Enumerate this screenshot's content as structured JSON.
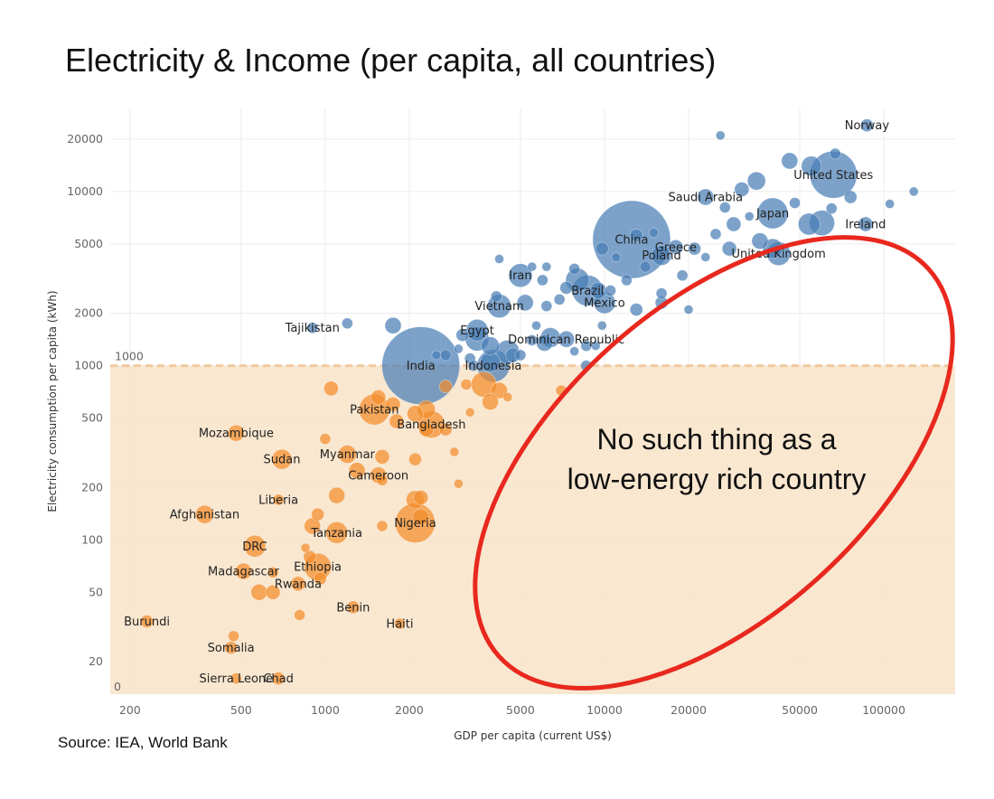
{
  "title": "Electricity & Income (per capita, all countries)",
  "source": "Source: IEA, World Bank",
  "chart_data": {
    "type": "scatter",
    "title": "Electricity & Income (per capita, all countries)",
    "xlabel": "GDP per capita (current US$)",
    "ylabel": "Electricity consumption per capita (kWh)",
    "x_scale": "log",
    "y_scale": "log",
    "xlim": [
      170,
      180000
    ],
    "ylim": [
      13,
      30000
    ],
    "x_ticks": [
      200,
      500,
      1000,
      2000,
      5000,
      10000,
      20000,
      50000,
      100000
    ],
    "x_tick_labels": [
      "200",
      "500",
      "1000",
      "2000",
      "5000",
      "10000",
      "20000",
      "50000",
      "100000"
    ],
    "y_ticks": [
      20,
      50,
      100,
      200,
      500,
      1000,
      2000,
      5000,
      10000,
      20000
    ],
    "y_tick_labels": [
      "20",
      "50",
      "100",
      "200",
      "500",
      "1000",
      "2000",
      "5000",
      "10000",
      "20000"
    ],
    "grid": true,
    "threshold": {
      "value": 1000,
      "label": "1000",
      "zero_label": "0"
    },
    "colors": {
      "above": "#4a7eb5",
      "below": "#f28e2b",
      "shade": "#f8e3c8",
      "threshold_line": "#f2c9a0",
      "annotation_ellipse": "#e8281e"
    },
    "annotation": [
      "No such thing as a",
      "low-energy rich country"
    ],
    "labeled_points": [
      {
        "name": "Norway",
        "x": 87000,
        "y": 24000,
        "size": 7
      },
      {
        "name": "United States",
        "x": 66000,
        "y": 12500,
        "size": 26
      },
      {
        "name": "Saudi Arabia",
        "x": 23000,
        "y": 9300,
        "size": 9
      },
      {
        "name": "Japan",
        "x": 40000,
        "y": 7500,
        "size": 17
      },
      {
        "name": "Ireland",
        "x": 86000,
        "y": 6500,
        "size": 8
      },
      {
        "name": "China",
        "x": 12500,
        "y": 5300,
        "size": 43
      },
      {
        "name": "Greece",
        "x": 18000,
        "y": 4800,
        "size": 8
      },
      {
        "name": "Poland",
        "x": 16000,
        "y": 4300,
        "size": 11
      },
      {
        "name": "United Kingdom",
        "x": 42000,
        "y": 4400,
        "size": 13
      },
      {
        "name": "Iran",
        "x": 5000,
        "y": 3300,
        "size": 13
      },
      {
        "name": "Brazil",
        "x": 8700,
        "y": 2700,
        "size": 17
      },
      {
        "name": "Mexico",
        "x": 10000,
        "y": 2300,
        "size": 12
      },
      {
        "name": "Vietnam",
        "x": 4200,
        "y": 2200,
        "size": 13
      },
      {
        "name": "Tajikistan",
        "x": 900,
        "y": 1650,
        "size": 6
      },
      {
        "name": "Egypt",
        "x": 3500,
        "y": 1600,
        "size": 12
      },
      {
        "name": "Dominican Republic",
        "x": 7300,
        "y": 1420,
        "size": 9
      },
      {
        "name": "India",
        "x": 2200,
        "y": 1000,
        "size": 43
      },
      {
        "name": "Indonesia",
        "x": 4000,
        "y": 1000,
        "size": 18
      },
      {
        "name": "Pakistan",
        "x": 1500,
        "y": 560,
        "size": 17
      },
      {
        "name": "Bangladesh",
        "x": 2400,
        "y": 460,
        "size": 15
      },
      {
        "name": "Mozambique",
        "x": 480,
        "y": 410,
        "size": 9
      },
      {
        "name": "Myanmar",
        "x": 1200,
        "y": 310,
        "size": 10
      },
      {
        "name": "Sudan",
        "x": 700,
        "y": 290,
        "size": 11
      },
      {
        "name": "Cameroon",
        "x": 1550,
        "y": 235,
        "size": 9
      },
      {
        "name": "Liberia",
        "x": 680,
        "y": 170,
        "size": 6
      },
      {
        "name": "Afghanistan",
        "x": 370,
        "y": 140,
        "size": 10
      },
      {
        "name": "Nigeria",
        "x": 2100,
        "y": 125,
        "size": 22
      },
      {
        "name": "Tanzania",
        "x": 1100,
        "y": 110,
        "size": 12
      },
      {
        "name": "DRC",
        "x": 560,
        "y": 92,
        "size": 12
      },
      {
        "name": "Ethiopia",
        "x": 940,
        "y": 70,
        "size": 15
      },
      {
        "name": "Madagascar",
        "x": 510,
        "y": 66,
        "size": 9
      },
      {
        "name": "Rwanda",
        "x": 800,
        "y": 56,
        "size": 8
      },
      {
        "name": "Benin",
        "x": 1260,
        "y": 41,
        "size": 7
      },
      {
        "name": "Burundi",
        "x": 230,
        "y": 34,
        "size": 7
      },
      {
        "name": "Haiti",
        "x": 1850,
        "y": 33,
        "size": 6
      },
      {
        "name": "Somalia",
        "x": 460,
        "y": 24,
        "size": 7
      },
      {
        "name": "Sierra Leone",
        "x": 480,
        "y": 16,
        "size": 6
      },
      {
        "name": "Chad",
        "x": 680,
        "y": 16,
        "size": 7
      }
    ],
    "other_points": [
      [
        26000,
        21000,
        5
      ],
      [
        67000,
        16500,
        6
      ],
      [
        46000,
        15000,
        9
      ],
      [
        55000,
        14000,
        11
      ],
      [
        35000,
        11500,
        10
      ],
      [
        76000,
        9300,
        7
      ],
      [
        105000,
        8500,
        5
      ],
      [
        128000,
        10000,
        5
      ],
      [
        31000,
        10300,
        8
      ],
      [
        27000,
        8100,
        6
      ],
      [
        48000,
        8600,
        6
      ],
      [
        60000,
        6600,
        14
      ],
      [
        54000,
        6500,
        12
      ],
      [
        65000,
        8000,
        6
      ],
      [
        33000,
        7200,
        5
      ],
      [
        29000,
        6500,
        8
      ],
      [
        25000,
        5700,
        6
      ],
      [
        36000,
        5200,
        9
      ],
      [
        28000,
        4700,
        8
      ],
      [
        40000,
        4700,
        11
      ],
      [
        21000,
        4700,
        7
      ],
      [
        23000,
        4200,
        5
      ],
      [
        15000,
        5800,
        5
      ],
      [
        13000,
        5600,
        7
      ],
      [
        9800,
        4700,
        7
      ],
      [
        11000,
        4200,
        5
      ],
      [
        14000,
        3700,
        6
      ],
      [
        4200,
        4100,
        5
      ],
      [
        5500,
        3700,
        5
      ],
      [
        6200,
        3700,
        5
      ],
      [
        7800,
        3600,
        6
      ],
      [
        8000,
        3100,
        13
      ],
      [
        6000,
        3100,
        6
      ],
      [
        7300,
        2800,
        7
      ],
      [
        9500,
        2700,
        9
      ],
      [
        10500,
        2700,
        6
      ],
      [
        16000,
        2600,
        6
      ],
      [
        12000,
        3100,
        6
      ],
      [
        19000,
        3300,
        6
      ],
      [
        16000,
        2300,
        7
      ],
      [
        20000,
        2100,
        5
      ],
      [
        13000,
        2100,
        7
      ],
      [
        6900,
        2400,
        6
      ],
      [
        5200,
        2300,
        9
      ],
      [
        6200,
        2200,
        6
      ],
      [
        4100,
        2500,
        6
      ],
      [
        5700,
        1700,
        5
      ],
      [
        9800,
        1700,
        5
      ],
      [
        1750,
        1700,
        9
      ],
      [
        1200,
        1750,
        6
      ],
      [
        3500,
        1420,
        13
      ],
      [
        3900,
        1300,
        10
      ],
      [
        4700,
        1150,
        8
      ],
      [
        6400,
        1450,
        11
      ],
      [
        6100,
        1350,
        9
      ],
      [
        4500,
        1200,
        13
      ],
      [
        5000,
        1150,
        6
      ],
      [
        9300,
        1300,
        5
      ],
      [
        8600,
        1300,
        6
      ],
      [
        5500,
        1400,
        6
      ],
      [
        7800,
        1210,
        5
      ],
      [
        8600,
        1000,
        6
      ],
      [
        2500,
        1150,
        5
      ],
      [
        2700,
        1150,
        6
      ],
      [
        3300,
        1100,
        6
      ],
      [
        3100,
        1500,
        7
      ],
      [
        3000,
        1250,
        5
      ],
      [
        3900,
        1050,
        11
      ],
      [
        3400,
        1000,
        6
      ],
      [
        3200,
        780,
        6
      ],
      [
        3700,
        780,
        14
      ],
      [
        4200,
        720,
        9
      ],
      [
        7000,
        720,
        6
      ],
      [
        3900,
        620,
        9
      ],
      [
        4500,
        660,
        5
      ],
      [
        1050,
        740,
        8
      ],
      [
        1550,
        660,
        8
      ],
      [
        2700,
        760,
        7
      ],
      [
        1750,
        600,
        8
      ],
      [
        2100,
        530,
        9
      ],
      [
        2300,
        560,
        10
      ],
      [
        1800,
        480,
        8
      ],
      [
        2300,
        430,
        8
      ],
      [
        2700,
        430,
        7
      ],
      [
        3300,
        540,
        5
      ],
      [
        2900,
        320,
        5
      ],
      [
        3000,
        210,
        5
      ],
      [
        1000,
        380,
        6
      ],
      [
        1300,
        250,
        9
      ],
      [
        1600,
        300,
        8
      ],
      [
        1600,
        220,
        6
      ],
      [
        2100,
        290,
        7
      ],
      [
        2100,
        170,
        10
      ],
      [
        1100,
        180,
        9
      ],
      [
        2200,
        175,
        8
      ],
      [
        940,
        140,
        7
      ],
      [
        1600,
        120,
        6
      ],
      [
        2200,
        135,
        9
      ],
      [
        900,
        120,
        9
      ],
      [
        850,
        90,
        5
      ],
      [
        880,
        80,
        7
      ],
      [
        960,
        60,
        7
      ],
      [
        650,
        50,
        8
      ],
      [
        580,
        50,
        9
      ],
      [
        810,
        37,
        6
      ],
      [
        650,
        65,
        6
      ],
      [
        470,
        28,
        6
      ]
    ]
  }
}
